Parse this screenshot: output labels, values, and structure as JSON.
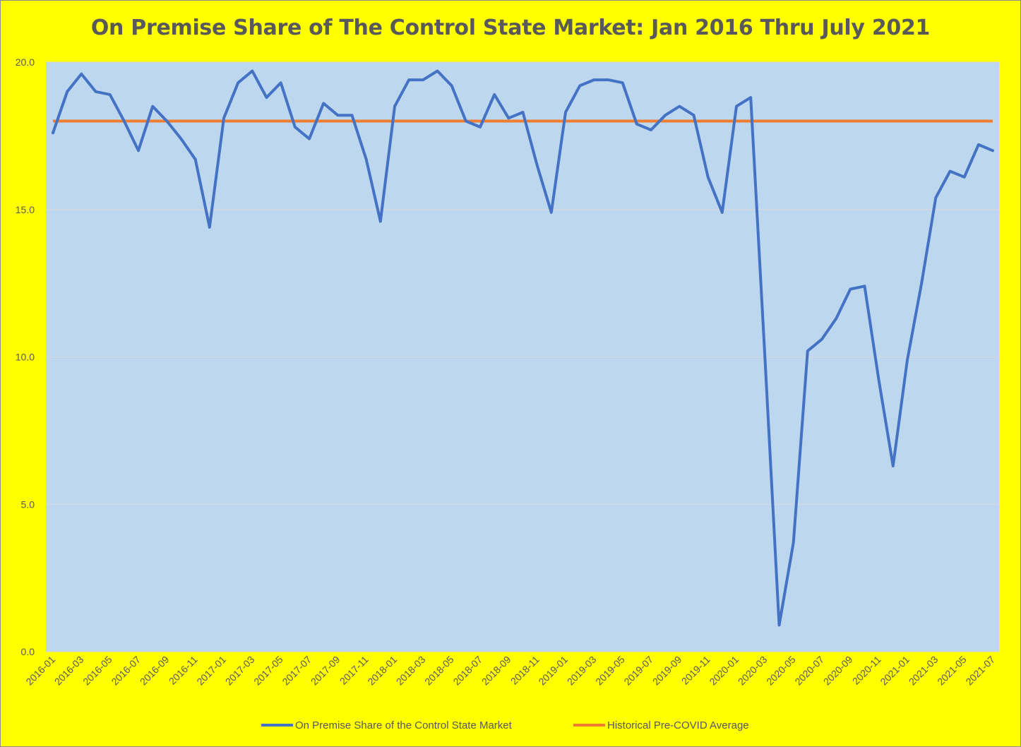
{
  "chart_data": {
    "type": "line",
    "title": "On Premise Share of The Control State Market: Jan 2016 Thru July 2021",
    "xlabel": "",
    "ylabel": "",
    "ylim": [
      0,
      20
    ],
    "yticks": [
      "0.0",
      "5.0",
      "10.0",
      "15.0",
      "20.0"
    ],
    "x": [
      "2016-01",
      "2016-02",
      "2016-03",
      "2016-04",
      "2016-05",
      "2016-06",
      "2016-07",
      "2016-08",
      "2016-09",
      "2016-10",
      "2016-11",
      "2016-12",
      "2017-01",
      "2017-02",
      "2017-03",
      "2017-04",
      "2017-05",
      "2017-06",
      "2017-07",
      "2017-08",
      "2017-09",
      "2017-10",
      "2017-11",
      "2017-12",
      "2018-01",
      "2018-02",
      "2018-03",
      "2018-04",
      "2018-05",
      "2018-06",
      "2018-07",
      "2018-08",
      "2018-09",
      "2018-10",
      "2018-11",
      "2018-12",
      "2019-01",
      "2019-02",
      "2019-03",
      "2019-04",
      "2019-05",
      "2019-06",
      "2019-07",
      "2019-08",
      "2019-09",
      "2019-10",
      "2019-11",
      "2019-12",
      "2020-01",
      "2020-02",
      "2020-03",
      "2020-04",
      "2020-05",
      "2020-06",
      "2020-07",
      "2020-08",
      "2020-09",
      "2020-10",
      "2020-11",
      "2020-12",
      "2021-01",
      "2021-02",
      "2021-03",
      "2021-04",
      "2021-05",
      "2021-06",
      "2021-07"
    ],
    "xtick_labels": [
      "2016-01",
      "2016-03",
      "2016-05",
      "2016-07",
      "2016-09",
      "2016-11",
      "2017-01",
      "2017-03",
      "2017-05",
      "2017-07",
      "2017-09",
      "2017-11",
      "2018-01",
      "2018-03",
      "2018-05",
      "2018-07",
      "2018-09",
      "2018-11",
      "2019-01",
      "2019-03",
      "2019-05",
      "2019-07",
      "2019-09",
      "2019-11",
      "2020-01",
      "2020-03",
      "2020-05",
      "2020-07",
      "2020-09",
      "2020-11",
      "2021-01",
      "2021-03",
      "2021-05",
      "2021-07"
    ],
    "series": [
      {
        "name": "On Premise Share of the Control State Market",
        "color": "#4472c4",
        "values": [
          17.6,
          19.0,
          19.6,
          19.0,
          18.9,
          18.0,
          17.0,
          18.5,
          18.0,
          17.4,
          16.7,
          14.4,
          18.1,
          19.3,
          19.7,
          18.8,
          19.3,
          17.8,
          17.4,
          18.6,
          18.2,
          18.2,
          16.7,
          14.6,
          18.5,
          19.4,
          19.4,
          19.7,
          19.2,
          18.0,
          17.8,
          18.9,
          18.1,
          18.3,
          16.5,
          14.9,
          18.3,
          19.2,
          19.4,
          19.4,
          19.3,
          17.9,
          17.7,
          18.2,
          18.5,
          18.2,
          16.1,
          14.9,
          18.5,
          18.8,
          10.0,
          0.9,
          3.7,
          10.2,
          10.6,
          11.3,
          12.3,
          12.4,
          9.2,
          6.3,
          9.9,
          12.5,
          15.4,
          16.3,
          16.1,
          17.2,
          17.0
        ]
      },
      {
        "name": "Historical Pre-COVID Average",
        "color": "#ed7d31",
        "constant": 18.0
      }
    ],
    "background": "#bdd7ee",
    "page_background": "#ffff00",
    "grid": true,
    "legend_position": "bottom"
  }
}
